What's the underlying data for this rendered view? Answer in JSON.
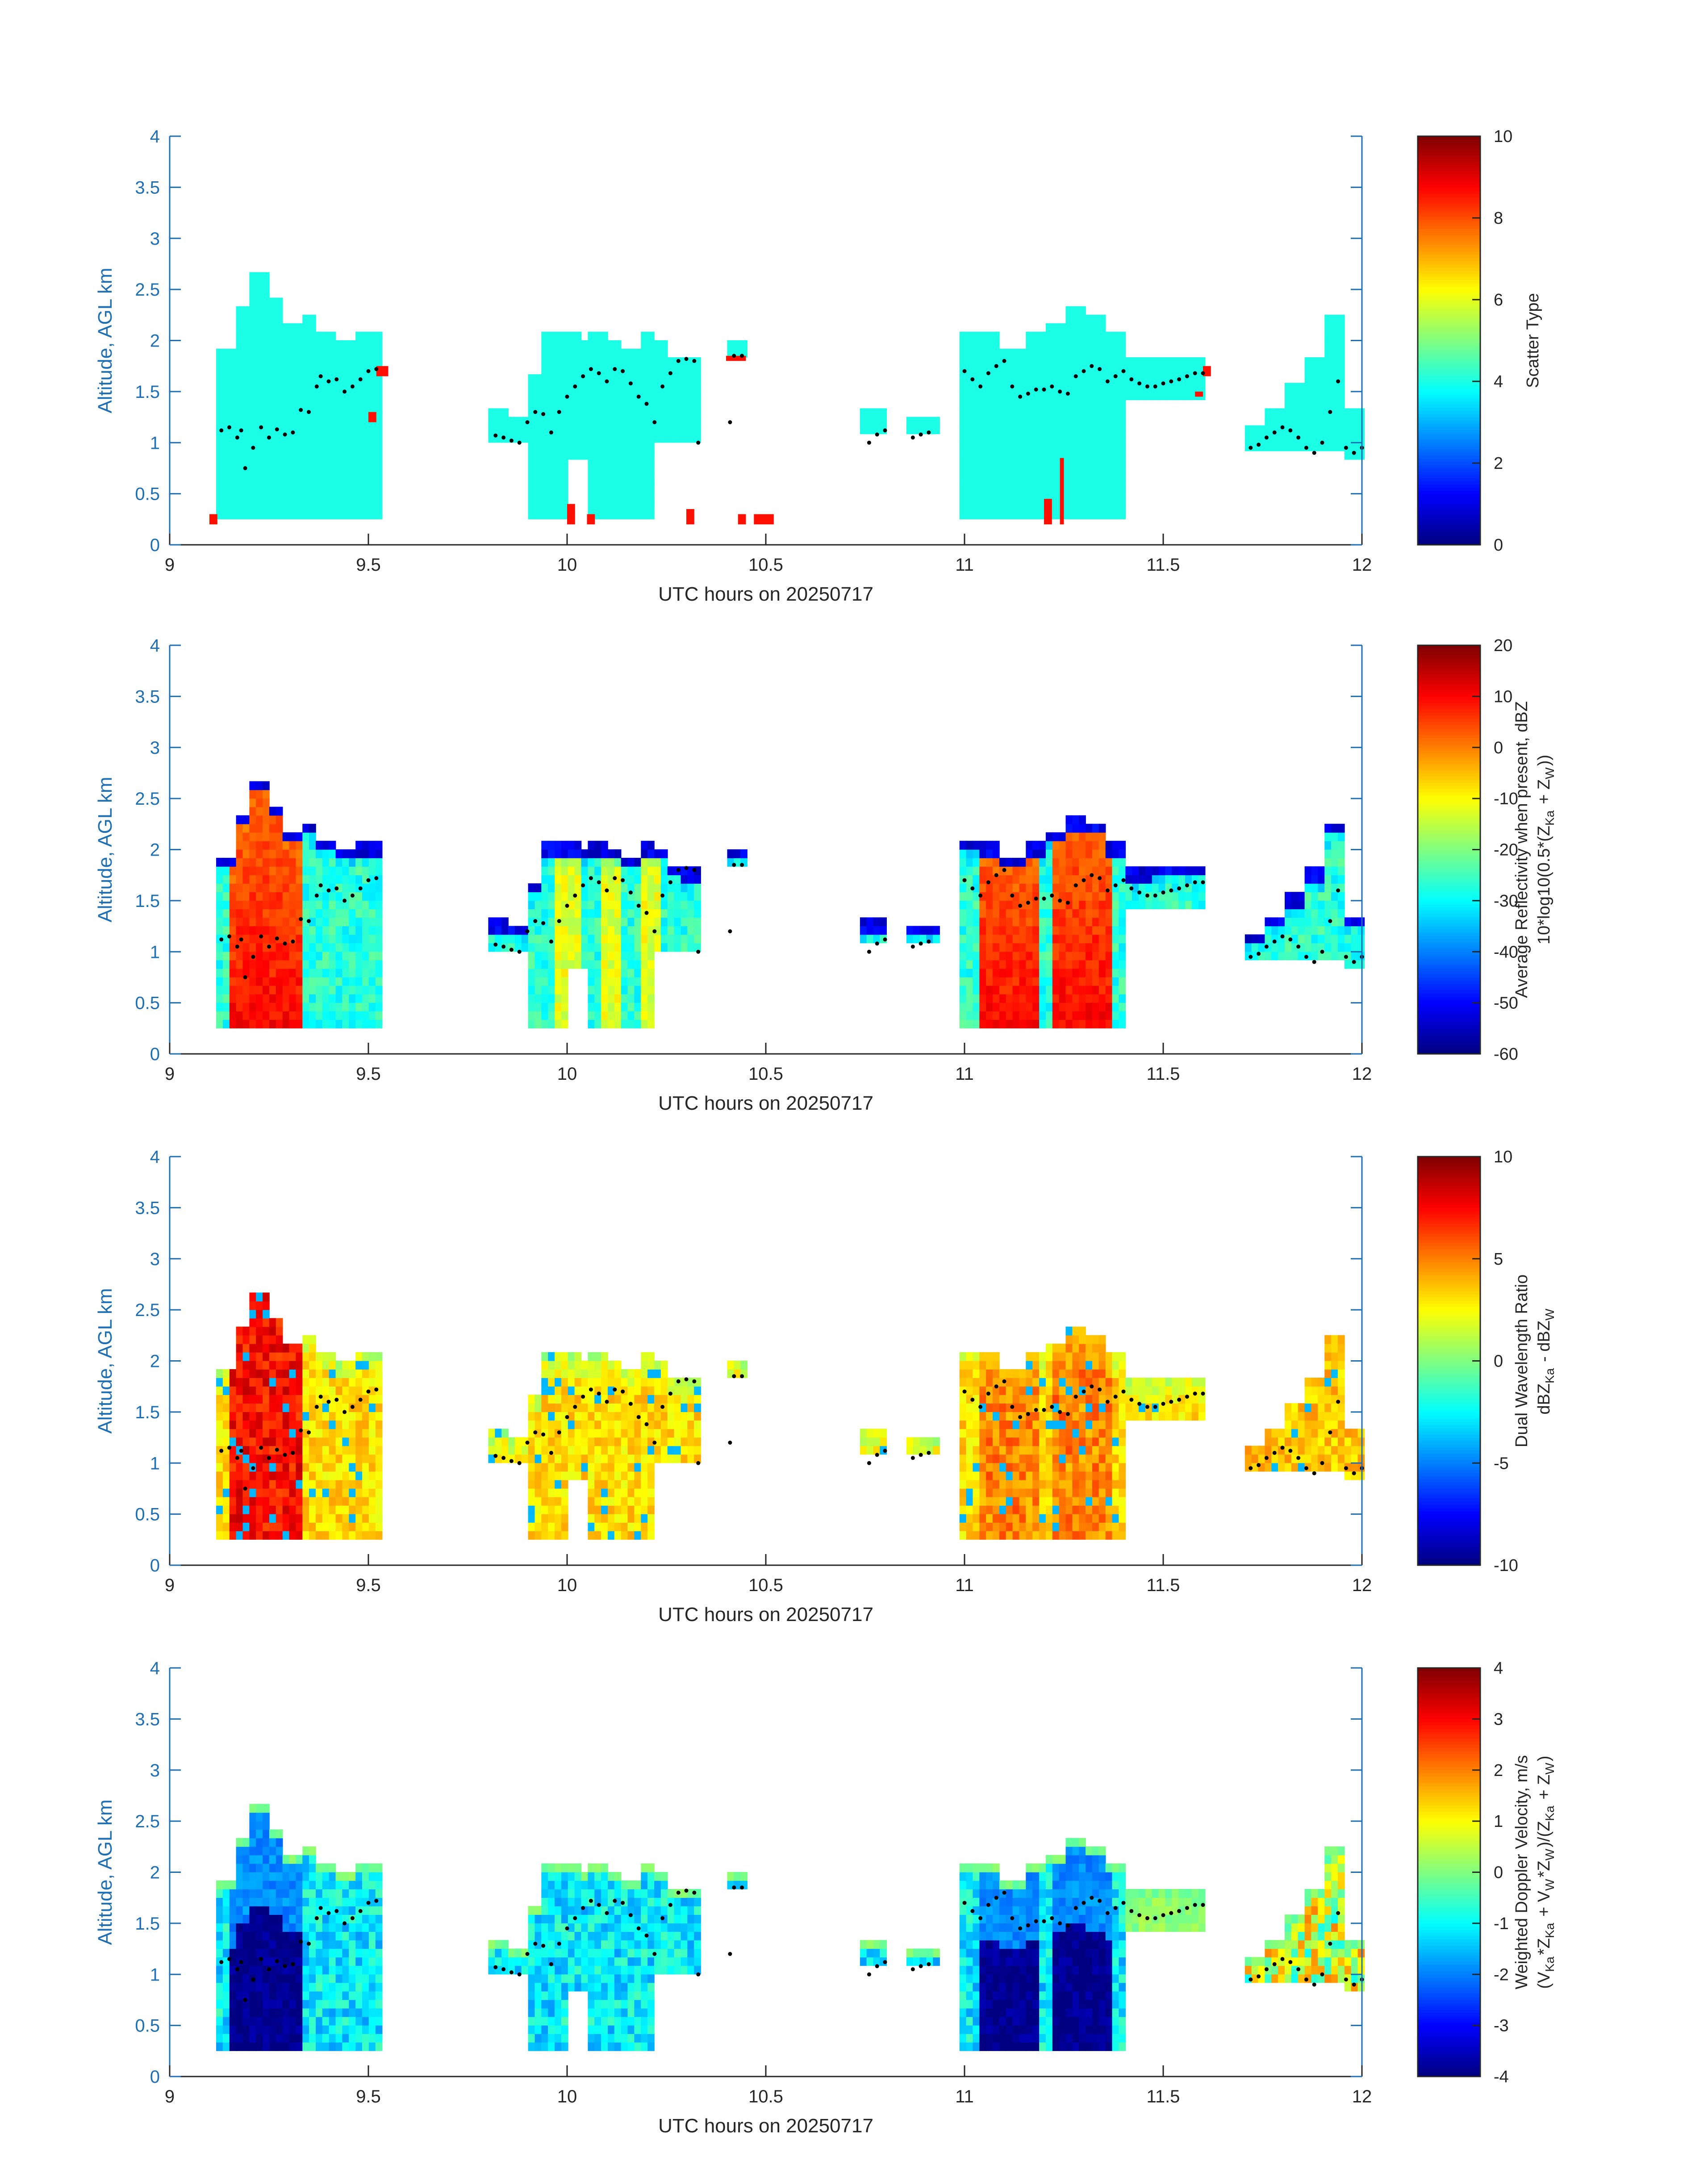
{
  "chart_data": [
    {
      "type": "heatmap",
      "xlabel": "UTC hours on 20250717",
      "ylabel": "Altitude, AGL km",
      "xlim": [
        9,
        12
      ],
      "ylim": [
        0,
        4
      ],
      "xticks": [
        "9",
        "9.5",
        "10",
        "10.5",
        "11",
        "11.5",
        "12"
      ],
      "yticks": [
        "0",
        "0.5",
        "1",
        "1.5",
        "2",
        "2.5",
        "3",
        "3.5",
        "4"
      ],
      "colorbar": {
        "label_lines": [
          "Scatter Type"
        ],
        "ticks": [
          "0",
          "2",
          "4",
          "6",
          "8",
          "10"
        ],
        "range": [
          0,
          10
        ],
        "colormap": "jet"
      },
      "field": "scatter_type",
      "background_value": 4.0,
      "accent_value": 8.6
    },
    {
      "type": "heatmap",
      "xlabel": "UTC hours on 20250717",
      "ylabel": "Altitude, AGL km",
      "xlim": [
        9,
        12
      ],
      "ylim": [
        0,
        4
      ],
      "xticks": [
        "9",
        "9.5",
        "10",
        "10.5",
        "11",
        "11.5",
        "12"
      ],
      "yticks": [
        "0",
        "0.5",
        "1",
        "1.5",
        "2",
        "2.5",
        "3",
        "3.5",
        "4"
      ],
      "colorbar": {
        "label_lines": [
          "Average Reflectivity when present, dBZ",
          "10*log10(0.5*(Z_{Ka} + Z_{W}))"
        ],
        "ticks": [
          "-60",
          "-50",
          "-40",
          "-30",
          "-20",
          "-10",
          "0",
          "10",
          "20"
        ],
        "range": [
          -60,
          20
        ],
        "colormap": "jet"
      },
      "field": "reflectivity"
    },
    {
      "type": "heatmap",
      "xlabel": "UTC hours on 20250717",
      "ylabel": "Altitude, AGL km",
      "xlim": [
        9,
        12
      ],
      "ylim": [
        0,
        4
      ],
      "xticks": [
        "9",
        "9.5",
        "10",
        "10.5",
        "11",
        "11.5",
        "12"
      ],
      "yticks": [
        "0",
        "0.5",
        "1",
        "1.5",
        "2",
        "2.5",
        "3",
        "3.5",
        "4"
      ],
      "colorbar": {
        "label_lines": [
          "Dual Wavelength Ratio",
          "dBZ_{Ka} - dBZ_{W}"
        ],
        "ticks": [
          "-10",
          "-5",
          "0",
          "5",
          "10"
        ],
        "range": [
          -10,
          10
        ],
        "colormap": "jet"
      },
      "field": "dwr"
    },
    {
      "type": "heatmap",
      "xlabel": "UTC hours on 20250717",
      "ylabel": "Altitude, AGL km",
      "xlim": [
        9,
        12
      ],
      "ylim": [
        0,
        4
      ],
      "xticks": [
        "9",
        "9.5",
        "10",
        "10.5",
        "11",
        "11.5",
        "12"
      ],
      "yticks": [
        "0",
        "0.5",
        "1",
        "1.5",
        "2",
        "2.5",
        "3",
        "3.5",
        "4"
      ],
      "colorbar": {
        "label_lines": [
          "Weighted Doppler Velocity, m/s",
          "(V_{Ka}*Z_{Ka} + V_{W}*Z_{W})/(Z_{Ka} + Z_{W})"
        ],
        "ticks": [
          "-4",
          "-3",
          "-2",
          "-1",
          "0",
          "1",
          "2",
          "3",
          "4"
        ],
        "range": [
          -4,
          4
        ],
        "colormap": "jet"
      },
      "field": "doppler_velocity"
    }
  ],
  "echo_columns": [
    {
      "x0": 9.12,
      "x1": 9.46,
      "bottom": 0.2,
      "top": [
        1.85,
        2.3,
        2.6,
        2.4,
        2.15,
        2.2,
        2.05,
        1.95
      ]
    },
    {
      "x0": 9.46,
      "x1": 9.53,
      "bottom": 0.2,
      "top": [
        2.0,
        2.0
      ]
    },
    {
      "x0": 9.8,
      "x1": 9.9,
      "bottom": 0.95,
      "top": [
        1.25,
        1.2
      ]
    },
    {
      "x0": 9.9,
      "x1": 10.0,
      "bottom": 0.2,
      "top": [
        1.6,
        2.0,
        2.0
      ]
    },
    {
      "x0": 10.0,
      "x1": 10.06,
      "bottom": 0.75,
      "top": [
        2.0,
        1.95
      ]
    },
    {
      "x0": 10.06,
      "x1": 10.22,
      "bottom": 0.2,
      "top": [
        2.0,
        1.95,
        1.9,
        2.0
      ]
    },
    {
      "x0": 10.22,
      "x1": 10.33,
      "bottom": 0.95,
      "top": [
        1.95,
        1.8,
        1.75
      ]
    },
    {
      "x0": 10.4,
      "x1": 10.46,
      "bottom": 1.75,
      "top": [
        1.95
      ]
    },
    {
      "x0": 10.74,
      "x1": 10.8,
      "bottom": 1.0,
      "top": [
        1.25
      ]
    },
    {
      "x0": 10.86,
      "x1": 10.93,
      "bottom": 1.0,
      "top": [
        1.2
      ]
    },
    {
      "x0": 10.99,
      "x1": 11.2,
      "bottom": 0.2,
      "top": [
        2.05,
        2.0,
        1.9,
        2.0
      ]
    },
    {
      "x0": 11.2,
      "x1": 11.4,
      "bottom": 0.2,
      "top": [
        2.1,
        2.25,
        2.2,
        2.0
      ]
    },
    {
      "x0": 11.4,
      "x1": 11.6,
      "bottom": 1.35,
      "top": [
        1.75,
        1.8,
        1.8
      ]
    },
    {
      "x0": 11.7,
      "x1": 11.75,
      "bottom": 0.85,
      "top": [
        1.1
      ]
    },
    {
      "x0": 11.75,
      "x1": 11.9,
      "bottom": 0.9,
      "top": [
        1.3,
        1.5,
        1.75
      ]
    },
    {
      "x0": 11.9,
      "x1": 11.95,
      "bottom": 0.85,
      "top": [
        2.2
      ]
    },
    {
      "x0": 11.95,
      "x1": 12.0,
      "bottom": 0.75,
      "top": [
        1.3
      ]
    }
  ],
  "scatter_blobs": [
    {
      "x0": 9.1,
      "x1": 9.12,
      "y0": 0.2,
      "y1": 0.3
    },
    {
      "x0": 9.52,
      "x1": 9.55,
      "y0": 1.65,
      "y1": 1.75
    },
    {
      "x0": 9.5,
      "x1": 9.52,
      "y0": 1.2,
      "y1": 1.3
    },
    {
      "x0": 10.0,
      "x1": 10.02,
      "y0": 0.2,
      "y1": 0.4
    },
    {
      "x0": 10.05,
      "x1": 10.07,
      "y0": 0.2,
      "y1": 0.3
    },
    {
      "x0": 10.3,
      "x1": 10.32,
      "y0": 0.2,
      "y1": 0.35
    },
    {
      "x0": 10.4,
      "x1": 10.45,
      "y0": 1.8,
      "y1": 1.85
    },
    {
      "x0": 10.43,
      "x1": 10.45,
      "y0": 0.2,
      "y1": 0.3
    },
    {
      "x0": 10.47,
      "x1": 10.52,
      "y0": 0.2,
      "y1": 0.3
    },
    {
      "x0": 11.2,
      "x1": 11.22,
      "y0": 0.2,
      "y1": 0.45
    },
    {
      "x0": 11.24,
      "x1": 11.25,
      "y0": 0.2,
      "y1": 0.85
    },
    {
      "x0": 11.6,
      "x1": 11.62,
      "y0": 1.65,
      "y1": 1.75
    },
    {
      "x0": 11.58,
      "x1": 11.6,
      "y0": 1.45,
      "y1": 1.5
    }
  ],
  "trace_points": [
    [
      9.13,
      1.12
    ],
    [
      9.15,
      1.15
    ],
    [
      9.17,
      1.05
    ],
    [
      9.18,
      1.12
    ],
    [
      9.19,
      0.75
    ],
    [
      9.21,
      0.95
    ],
    [
      9.23,
      1.15
    ],
    [
      9.25,
      1.05
    ],
    [
      9.27,
      1.13
    ],
    [
      9.29,
      1.08
    ],
    [
      9.31,
      1.1
    ],
    [
      9.33,
      1.32
    ],
    [
      9.35,
      1.3
    ],
    [
      9.37,
      1.55
    ],
    [
      9.38,
      1.65
    ],
    [
      9.4,
      1.6
    ],
    [
      9.42,
      1.62
    ],
    [
      9.44,
      1.5
    ],
    [
      9.46,
      1.55
    ],
    [
      9.48,
      1.62
    ],
    [
      9.5,
      1.7
    ],
    [
      9.52,
      1.72
    ],
    [
      9.82,
      1.07
    ],
    [
      9.84,
      1.05
    ],
    [
      9.86,
      1.02
    ],
    [
      9.88,
      1.0
    ],
    [
      9.9,
      1.2
    ],
    [
      9.92,
      1.3
    ],
    [
      9.94,
      1.28
    ],
    [
      9.96,
      1.1
    ],
    [
      9.98,
      1.3
    ],
    [
      10.0,
      1.45
    ],
    [
      10.02,
      1.55
    ],
    [
      10.04,
      1.65
    ],
    [
      10.06,
      1.72
    ],
    [
      10.08,
      1.68
    ],
    [
      10.1,
      1.6
    ],
    [
      10.12,
      1.72
    ],
    [
      10.14,
      1.7
    ],
    [
      10.16,
      1.58
    ],
    [
      10.18,
      1.45
    ],
    [
      10.2,
      1.38
    ],
    [
      10.22,
      1.2
    ],
    [
      10.24,
      1.55
    ],
    [
      10.26,
      1.68
    ],
    [
      10.28,
      1.8
    ],
    [
      10.3,
      1.82
    ],
    [
      10.32,
      1.8
    ],
    [
      10.33,
      1.0
    ],
    [
      10.42,
      1.85
    ],
    [
      10.44,
      1.85
    ],
    [
      10.41,
      1.2
    ],
    [
      10.76,
      1.0
    ],
    [
      10.78,
      1.08
    ],
    [
      10.8,
      1.12
    ],
    [
      10.87,
      1.05
    ],
    [
      10.89,
      1.08
    ],
    [
      10.91,
      1.1
    ],
    [
      11.0,
      1.7
    ],
    [
      11.02,
      1.62
    ],
    [
      11.04,
      1.55
    ],
    [
      11.06,
      1.68
    ],
    [
      11.08,
      1.75
    ],
    [
      11.1,
      1.8
    ],
    [
      11.12,
      1.55
    ],
    [
      11.14,
      1.45
    ],
    [
      11.16,
      1.48
    ],
    [
      11.18,
      1.52
    ],
    [
      11.2,
      1.52
    ],
    [
      11.22,
      1.55
    ],
    [
      11.24,
      1.5
    ],
    [
      11.26,
      1.48
    ],
    [
      11.28,
      1.65
    ],
    [
      11.3,
      1.7
    ],
    [
      11.32,
      1.75
    ],
    [
      11.34,
      1.72
    ],
    [
      11.36,
      1.6
    ],
    [
      11.38,
      1.65
    ],
    [
      11.4,
      1.7
    ],
    [
      11.42,
      1.62
    ],
    [
      11.44,
      1.58
    ],
    [
      11.46,
      1.55
    ],
    [
      11.48,
      1.55
    ],
    [
      11.5,
      1.58
    ],
    [
      11.52,
      1.6
    ],
    [
      11.54,
      1.62
    ],
    [
      11.56,
      1.65
    ],
    [
      11.58,
      1.68
    ],
    [
      11.6,
      1.68
    ],
    [
      11.72,
      0.95
    ],
    [
      11.74,
      0.98
    ],
    [
      11.76,
      1.05
    ],
    [
      11.78,
      1.1
    ],
    [
      11.8,
      1.15
    ],
    [
      11.82,
      1.12
    ],
    [
      11.84,
      1.05
    ],
    [
      11.86,
      0.95
    ],
    [
      11.88,
      0.9
    ],
    [
      11.9,
      1.0
    ],
    [
      11.92,
      1.3
    ],
    [
      11.94,
      1.6
    ],
    [
      11.96,
      0.95
    ],
    [
      11.98,
      0.9
    ],
    [
      12.0,
      0.95
    ]
  ]
}
